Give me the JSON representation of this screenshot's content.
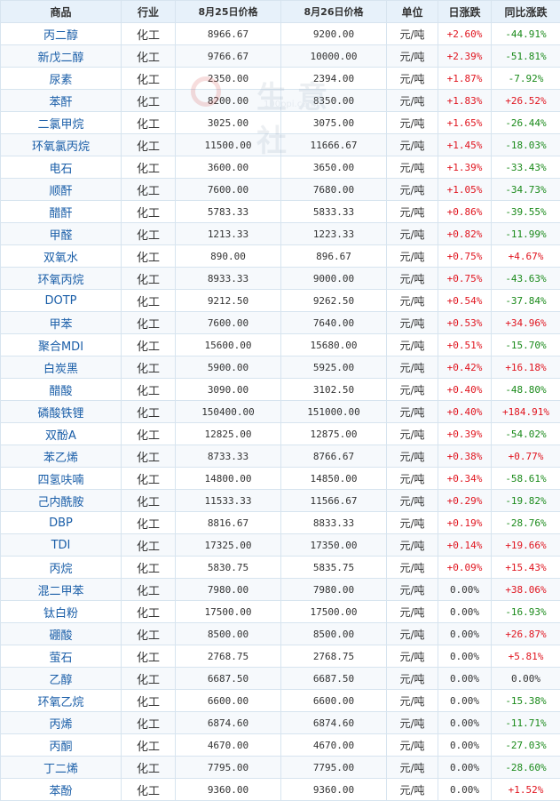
{
  "watermark": {
    "brand": "生意社",
    "url": "100ppi.com"
  },
  "headers": {
    "product": "商品",
    "industry": "行业",
    "price_a": "8月25日价格",
    "price_b": "8月26日价格",
    "unit": "单位",
    "daily": "日涨跌",
    "yoy": "同比涨跌"
  },
  "rows": [
    {
      "name": "丙二醇",
      "industry": "化工",
      "p1": "8966.67",
      "p2": "9200.00",
      "unit": "元/吨",
      "daily": "+2.60%",
      "yoy": "-44.91%"
    },
    {
      "name": "新戊二醇",
      "industry": "化工",
      "p1": "9766.67",
      "p2": "10000.00",
      "unit": "元/吨",
      "daily": "+2.39%",
      "yoy": "-51.81%"
    },
    {
      "name": "尿素",
      "industry": "化工",
      "p1": "2350.00",
      "p2": "2394.00",
      "unit": "元/吨",
      "daily": "+1.87%",
      "yoy": "-7.92%"
    },
    {
      "name": "苯酐",
      "industry": "化工",
      "p1": "8200.00",
      "p2": "8350.00",
      "unit": "元/吨",
      "daily": "+1.83%",
      "yoy": "+26.52%"
    },
    {
      "name": "二氯甲烷",
      "industry": "化工",
      "p1": "3025.00",
      "p2": "3075.00",
      "unit": "元/吨",
      "daily": "+1.65%",
      "yoy": "-26.44%"
    },
    {
      "name": "环氧氯丙烷",
      "industry": "化工",
      "p1": "11500.00",
      "p2": "11666.67",
      "unit": "元/吨",
      "daily": "+1.45%",
      "yoy": "-18.03%"
    },
    {
      "name": "电石",
      "industry": "化工",
      "p1": "3600.00",
      "p2": "3650.00",
      "unit": "元/吨",
      "daily": "+1.39%",
      "yoy": "-33.43%"
    },
    {
      "name": "顺酐",
      "industry": "化工",
      "p1": "7600.00",
      "p2": "7680.00",
      "unit": "元/吨",
      "daily": "+1.05%",
      "yoy": "-34.73%"
    },
    {
      "name": "醋酐",
      "industry": "化工",
      "p1": "5783.33",
      "p2": "5833.33",
      "unit": "元/吨",
      "daily": "+0.86%",
      "yoy": "-39.55%"
    },
    {
      "name": "甲醛",
      "industry": "化工",
      "p1": "1213.33",
      "p2": "1223.33",
      "unit": "元/吨",
      "daily": "+0.82%",
      "yoy": "-11.99%"
    },
    {
      "name": "双氧水",
      "industry": "化工",
      "p1": "890.00",
      "p2": "896.67",
      "unit": "元/吨",
      "daily": "+0.75%",
      "yoy": "+4.67%"
    },
    {
      "name": "环氧丙烷",
      "industry": "化工",
      "p1": "8933.33",
      "p2": "9000.00",
      "unit": "元/吨",
      "daily": "+0.75%",
      "yoy": "-43.63%"
    },
    {
      "name": "DOTP",
      "industry": "化工",
      "p1": "9212.50",
      "p2": "9262.50",
      "unit": "元/吨",
      "daily": "+0.54%",
      "yoy": "-37.84%"
    },
    {
      "name": "甲苯",
      "industry": "化工",
      "p1": "7600.00",
      "p2": "7640.00",
      "unit": "元/吨",
      "daily": "+0.53%",
      "yoy": "+34.96%"
    },
    {
      "name": "聚合MDI",
      "industry": "化工",
      "p1": "15600.00",
      "p2": "15680.00",
      "unit": "元/吨",
      "daily": "+0.51%",
      "yoy": "-15.70%"
    },
    {
      "name": "白炭黑",
      "industry": "化工",
      "p1": "5900.00",
      "p2": "5925.00",
      "unit": "元/吨",
      "daily": "+0.42%",
      "yoy": "+16.18%"
    },
    {
      "name": "醋酸",
      "industry": "化工",
      "p1": "3090.00",
      "p2": "3102.50",
      "unit": "元/吨",
      "daily": "+0.40%",
      "yoy": "-48.80%"
    },
    {
      "name": "磷酸铁锂",
      "industry": "化工",
      "p1": "150400.00",
      "p2": "151000.00",
      "unit": "元/吨",
      "daily": "+0.40%",
      "yoy": "+184.91%"
    },
    {
      "name": "双酚A",
      "industry": "化工",
      "p1": "12825.00",
      "p2": "12875.00",
      "unit": "元/吨",
      "daily": "+0.39%",
      "yoy": "-54.02%"
    },
    {
      "name": "苯乙烯",
      "industry": "化工",
      "p1": "8733.33",
      "p2": "8766.67",
      "unit": "元/吨",
      "daily": "+0.38%",
      "yoy": "+0.77%"
    },
    {
      "name": "四氢呋喃",
      "industry": "化工",
      "p1": "14800.00",
      "p2": "14850.00",
      "unit": "元/吨",
      "daily": "+0.34%",
      "yoy": "-58.61%"
    },
    {
      "name": "己内酰胺",
      "industry": "化工",
      "p1": "11533.33",
      "p2": "11566.67",
      "unit": "元/吨",
      "daily": "+0.29%",
      "yoy": "-19.82%"
    },
    {
      "name": "DBP",
      "industry": "化工",
      "p1": "8816.67",
      "p2": "8833.33",
      "unit": "元/吨",
      "daily": "+0.19%",
      "yoy": "-28.76%"
    },
    {
      "name": "TDI",
      "industry": "化工",
      "p1": "17325.00",
      "p2": "17350.00",
      "unit": "元/吨",
      "daily": "+0.14%",
      "yoy": "+19.66%"
    },
    {
      "name": "丙烷",
      "industry": "化工",
      "p1": "5830.75",
      "p2": "5835.75",
      "unit": "元/吨",
      "daily": "+0.09%",
      "yoy": "+15.43%"
    },
    {
      "name": "混二甲苯",
      "industry": "化工",
      "p1": "7980.00",
      "p2": "7980.00",
      "unit": "元/吨",
      "daily": "0.00%",
      "yoy": "+38.06%"
    },
    {
      "name": "钛白粉",
      "industry": "化工",
      "p1": "17500.00",
      "p2": "17500.00",
      "unit": "元/吨",
      "daily": "0.00%",
      "yoy": "-16.93%"
    },
    {
      "name": "硼酸",
      "industry": "化工",
      "p1": "8500.00",
      "p2": "8500.00",
      "unit": "元/吨",
      "daily": "0.00%",
      "yoy": "+26.87%"
    },
    {
      "name": "萤石",
      "industry": "化工",
      "p1": "2768.75",
      "p2": "2768.75",
      "unit": "元/吨",
      "daily": "0.00%",
      "yoy": "+5.81%"
    },
    {
      "name": "乙醇",
      "industry": "化工",
      "p1": "6687.50",
      "p2": "6687.50",
      "unit": "元/吨",
      "daily": "0.00%",
      "yoy": "0.00%"
    },
    {
      "name": "环氧乙烷",
      "industry": "化工",
      "p1": "6600.00",
      "p2": "6600.00",
      "unit": "元/吨",
      "daily": "0.00%",
      "yoy": "-15.38%"
    },
    {
      "name": "丙烯",
      "industry": "化工",
      "p1": "6874.60",
      "p2": "6874.60",
      "unit": "元/吨",
      "daily": "0.00%",
      "yoy": "-11.71%"
    },
    {
      "name": "丙酮",
      "industry": "化工",
      "p1": "4670.00",
      "p2": "4670.00",
      "unit": "元/吨",
      "daily": "0.00%",
      "yoy": "-27.03%"
    },
    {
      "name": "丁二烯",
      "industry": "化工",
      "p1": "7795.00",
      "p2": "7795.00",
      "unit": "元/吨",
      "daily": "0.00%",
      "yoy": "-28.60%"
    },
    {
      "name": "苯酚",
      "industry": "化工",
      "p1": "9360.00",
      "p2": "9360.00",
      "unit": "元/吨",
      "daily": "0.00%",
      "yoy": "+1.52%"
    }
  ],
  "colors": {
    "up": "#e0141e",
    "down": "#1a8a1a",
    "flat": "#333333",
    "header_bg": "#e7f1fa",
    "border": "#d7e4ef",
    "name_link": "#1a5ea8"
  }
}
